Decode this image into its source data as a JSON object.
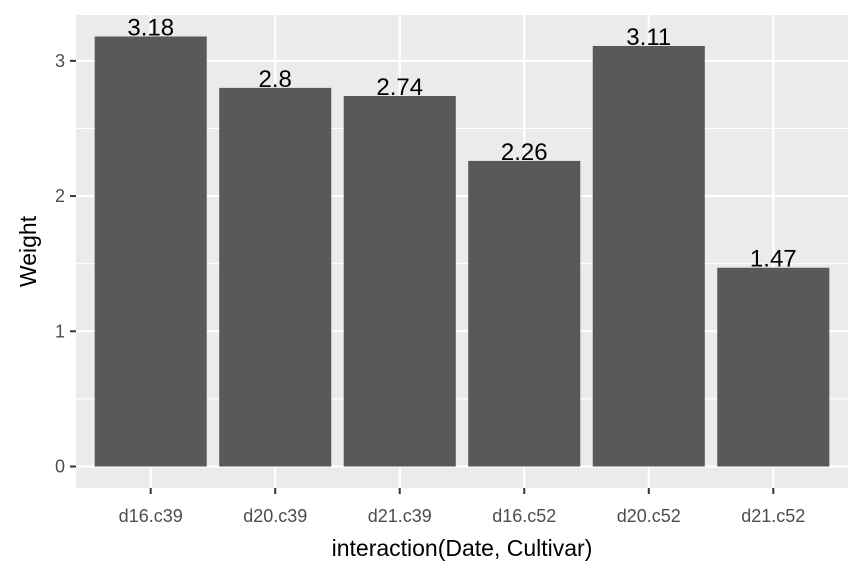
{
  "chart_data": {
    "type": "bar",
    "title": "",
    "xlabel": "interaction(Date, Cultivar)",
    "ylabel": "Weight",
    "categories": [
      "d16.c39",
      "d20.c39",
      "d21.c39",
      "d16.c52",
      "d20.c52",
      "d21.c52"
    ],
    "values": [
      3.18,
      2.8,
      2.74,
      2.26,
      3.11,
      1.47
    ],
    "value_labels": [
      "3.18",
      "2.8",
      "2.74",
      "2.26",
      "3.11",
      "1.47"
    ],
    "yticks": [
      0,
      1,
      2,
      3
    ],
    "ylim": [
      -0.159,
      3.339
    ],
    "grid": true,
    "colors": {
      "panel_bg": "#ebebeb",
      "grid": "#ffffff",
      "bar": "#595959",
      "tick": "#333333"
    }
  }
}
